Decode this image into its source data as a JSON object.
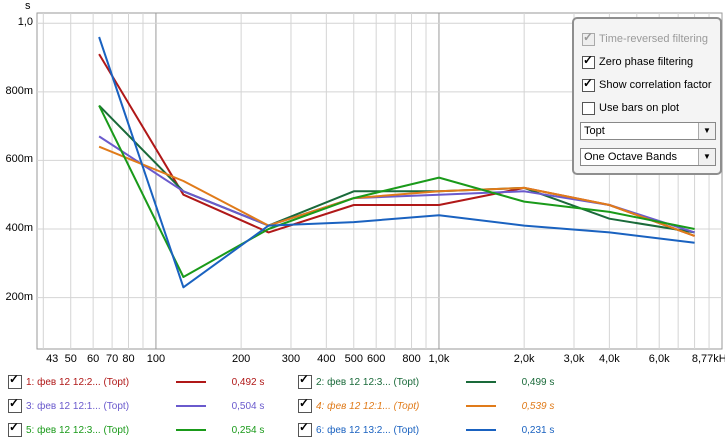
{
  "chart_data": {
    "type": "line",
    "ylabel": "s",
    "x_scale": "log",
    "xlim": [
      38,
      10000
    ],
    "ylim": [
      0.05,
      1.03
    ],
    "y_ticks": [
      {
        "v": 1.0,
        "label": "1,0"
      },
      {
        "v": 0.8,
        "label": "800m"
      },
      {
        "v": 0.6,
        "label": "600m"
      },
      {
        "v": 0.4,
        "label": "400m"
      },
      {
        "v": 0.2,
        "label": "200m"
      }
    ],
    "x_ticks": [
      {
        "v": 43,
        "label": "43"
      },
      {
        "v": 50,
        "label": "50"
      },
      {
        "v": 60,
        "label": "60"
      },
      {
        "v": 70,
        "label": "70"
      },
      {
        "v": 80,
        "label": "80"
      },
      {
        "v": 100,
        "label": "100"
      },
      {
        "v": 200,
        "label": "200"
      },
      {
        "v": 300,
        "label": "300"
      },
      {
        "v": 400,
        "label": "400"
      },
      {
        "v": 500,
        "label": "500"
      },
      {
        "v": 600,
        "label": "600"
      },
      {
        "v": 800,
        "label": "800"
      },
      {
        "v": 1000,
        "label": "1,0k"
      },
      {
        "v": 2000,
        "label": "2,0k"
      },
      {
        "v": 3000,
        "label": "3,0k"
      },
      {
        "v": 4000,
        "label": "4,0k"
      },
      {
        "v": 6000,
        "label": "6,0k"
      },
      {
        "v": 8770,
        "label": "8,77kHz"
      }
    ],
    "x": [
      63,
      125,
      250,
      500,
      1000,
      2000,
      4000,
      8000
    ],
    "series": [
      {
        "name": "1: фев 12 12:2... (Topt)",
        "color": "#b01818",
        "value": "0,492 s",
        "values": [
          0.91,
          0.5,
          0.39,
          0.47,
          0.47,
          0.52,
          0.47,
          0.38
        ]
      },
      {
        "name": "2: фев 12 12:3... (Topt)",
        "color": "#1a6a3a",
        "value": "0,499 s",
        "values": [
          0.76,
          0.51,
          0.41,
          0.51,
          0.51,
          0.52,
          0.43,
          0.39
        ]
      },
      {
        "name": "3: фев 12 12:1... (Topt)",
        "color": "#6a5acd",
        "value": "0,504 s",
        "values": [
          0.67,
          0.51,
          0.41,
          0.49,
          0.5,
          0.51,
          0.47,
          0.39
        ]
      },
      {
        "name": "4: фев 12 12:1... (Topt)",
        "color": "#e07b1a",
        "value": "0,539 s",
        "italic": true,
        "values": [
          0.64,
          0.54,
          0.41,
          0.49,
          0.51,
          0.52,
          0.47,
          0.38
        ]
      },
      {
        "name": "5: фев 12 12:3... (Topt)",
        "color": "#1a9a1a",
        "value": "0,254 s",
        "values": [
          0.76,
          0.26,
          0.4,
          0.49,
          0.55,
          0.48,
          0.45,
          0.4
        ]
      },
      {
        "name": "6: фев 12 13:2... (Topt)",
        "color": "#1a62c0",
        "value": "0,231 s",
        "values": [
          0.96,
          0.23,
          0.41,
          0.42,
          0.44,
          0.41,
          0.39,
          0.36
        ]
      }
    ]
  },
  "options": {
    "time_reversed": {
      "label": "Time-reversed filtering",
      "checked": true,
      "disabled": true
    },
    "zero_phase": {
      "label": "Zero phase filtering",
      "checked": true
    },
    "show_corr": {
      "label": "Show correlation factor",
      "checked": true
    },
    "use_bars": {
      "label": "Use bars on plot",
      "checked": false
    },
    "param_select": "Topt",
    "band_select": "One Octave Bands"
  }
}
